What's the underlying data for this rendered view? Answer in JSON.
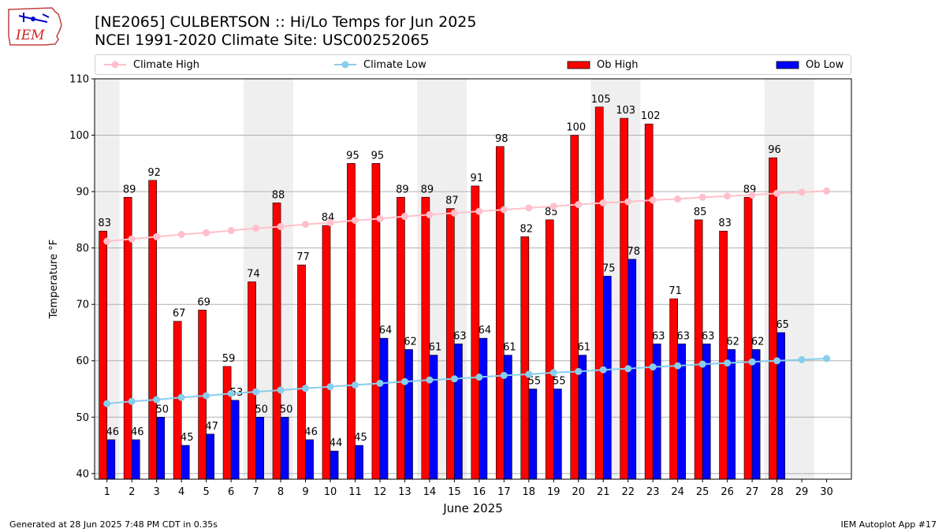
{
  "header": {
    "title_line1": "[NE2065] CULBERTSON :: Hi/Lo Temps for Jun 2025",
    "title_line2": "NCEI 1991-2020 Climate Site: USC00252065",
    "logo_text": "IEM"
  },
  "legend": {
    "placement": "top, full width, single row",
    "items": [
      {
        "label": "Climate High",
        "marker": "line-circle",
        "color": "#ffc0cb"
      },
      {
        "label": "Climate Low",
        "marker": "line-circle",
        "color": "#87ceeb"
      },
      {
        "label": "Ob High",
        "marker": "box",
        "color": "#ff0000"
      },
      {
        "label": "Ob Low",
        "marker": "box",
        "color": "#0000ff"
      }
    ]
  },
  "footer": {
    "left": "Generated at 28 Jun 2025 7:48 PM CDT in 0.35s",
    "right": "IEM Autoplot App #17"
  },
  "chart_data": {
    "type": "bar",
    "title": "[NE2065] CULBERTSON :: Hi/Lo Temps for Jun 2025",
    "subtitle": "NCEI 1991-2020 Climate Site: USC00252065",
    "xlabel": "June 2025",
    "ylabel": "Temperature °F",
    "ylim": [
      39,
      110
    ],
    "yticks": [
      40,
      50,
      60,
      70,
      80,
      90,
      100,
      110
    ],
    "grid": "horizontal",
    "categories": [
      "1",
      "2",
      "3",
      "4",
      "5",
      "6",
      "7",
      "8",
      "9",
      "10",
      "11",
      "12",
      "13",
      "14",
      "15",
      "16",
      "17",
      "18",
      "19",
      "20",
      "21",
      "22",
      "23",
      "24",
      "25",
      "26",
      "27",
      "28",
      "29",
      "30"
    ],
    "weekend_shading_days": [
      1,
      7,
      8,
      14,
      15,
      21,
      22,
      28,
      29
    ],
    "series": [
      {
        "name": "Ob High",
        "kind": "bar",
        "color": "#ff0000",
        "values": [
          83,
          89,
          92,
          67,
          69,
          59,
          74,
          88,
          77,
          84,
          95,
          95,
          89,
          89,
          87,
          91,
          98,
          82,
          85,
          100,
          105,
          103,
          102,
          71,
          85,
          83,
          89,
          96,
          null,
          null
        ]
      },
      {
        "name": "Ob Low",
        "kind": "bar",
        "color": "#0000ff",
        "values": [
          46,
          46,
          50,
          45,
          47,
          53,
          50,
          50,
          46,
          44,
          45,
          64,
          62,
          61,
          63,
          64,
          61,
          55,
          55,
          61,
          75,
          78,
          63,
          63,
          63,
          62,
          62,
          65,
          null,
          null
        ]
      },
      {
        "name": "Climate High",
        "kind": "line",
        "color": "#ffc0cb",
        "values": [
          81.2,
          81.6,
          82.0,
          82.4,
          82.7,
          83.1,
          83.5,
          83.8,
          84.2,
          84.5,
          84.9,
          85.2,
          85.6,
          85.9,
          86.2,
          86.5,
          86.8,
          87.1,
          87.4,
          87.7,
          88.0,
          88.2,
          88.5,
          88.7,
          89.0,
          89.2,
          89.4,
          89.7,
          89.9,
          90.1
        ]
      },
      {
        "name": "Climate Low",
        "kind": "line",
        "color": "#87ceeb",
        "values": [
          52.4,
          52.8,
          53.1,
          53.5,
          53.8,
          54.2,
          54.5,
          54.8,
          55.1,
          55.4,
          55.7,
          56.0,
          56.3,
          56.6,
          56.8,
          57.1,
          57.4,
          57.6,
          57.9,
          58.1,
          58.4,
          58.6,
          58.9,
          59.1,
          59.4,
          59.6,
          59.8,
          60.0,
          60.2,
          60.4
        ]
      }
    ]
  }
}
